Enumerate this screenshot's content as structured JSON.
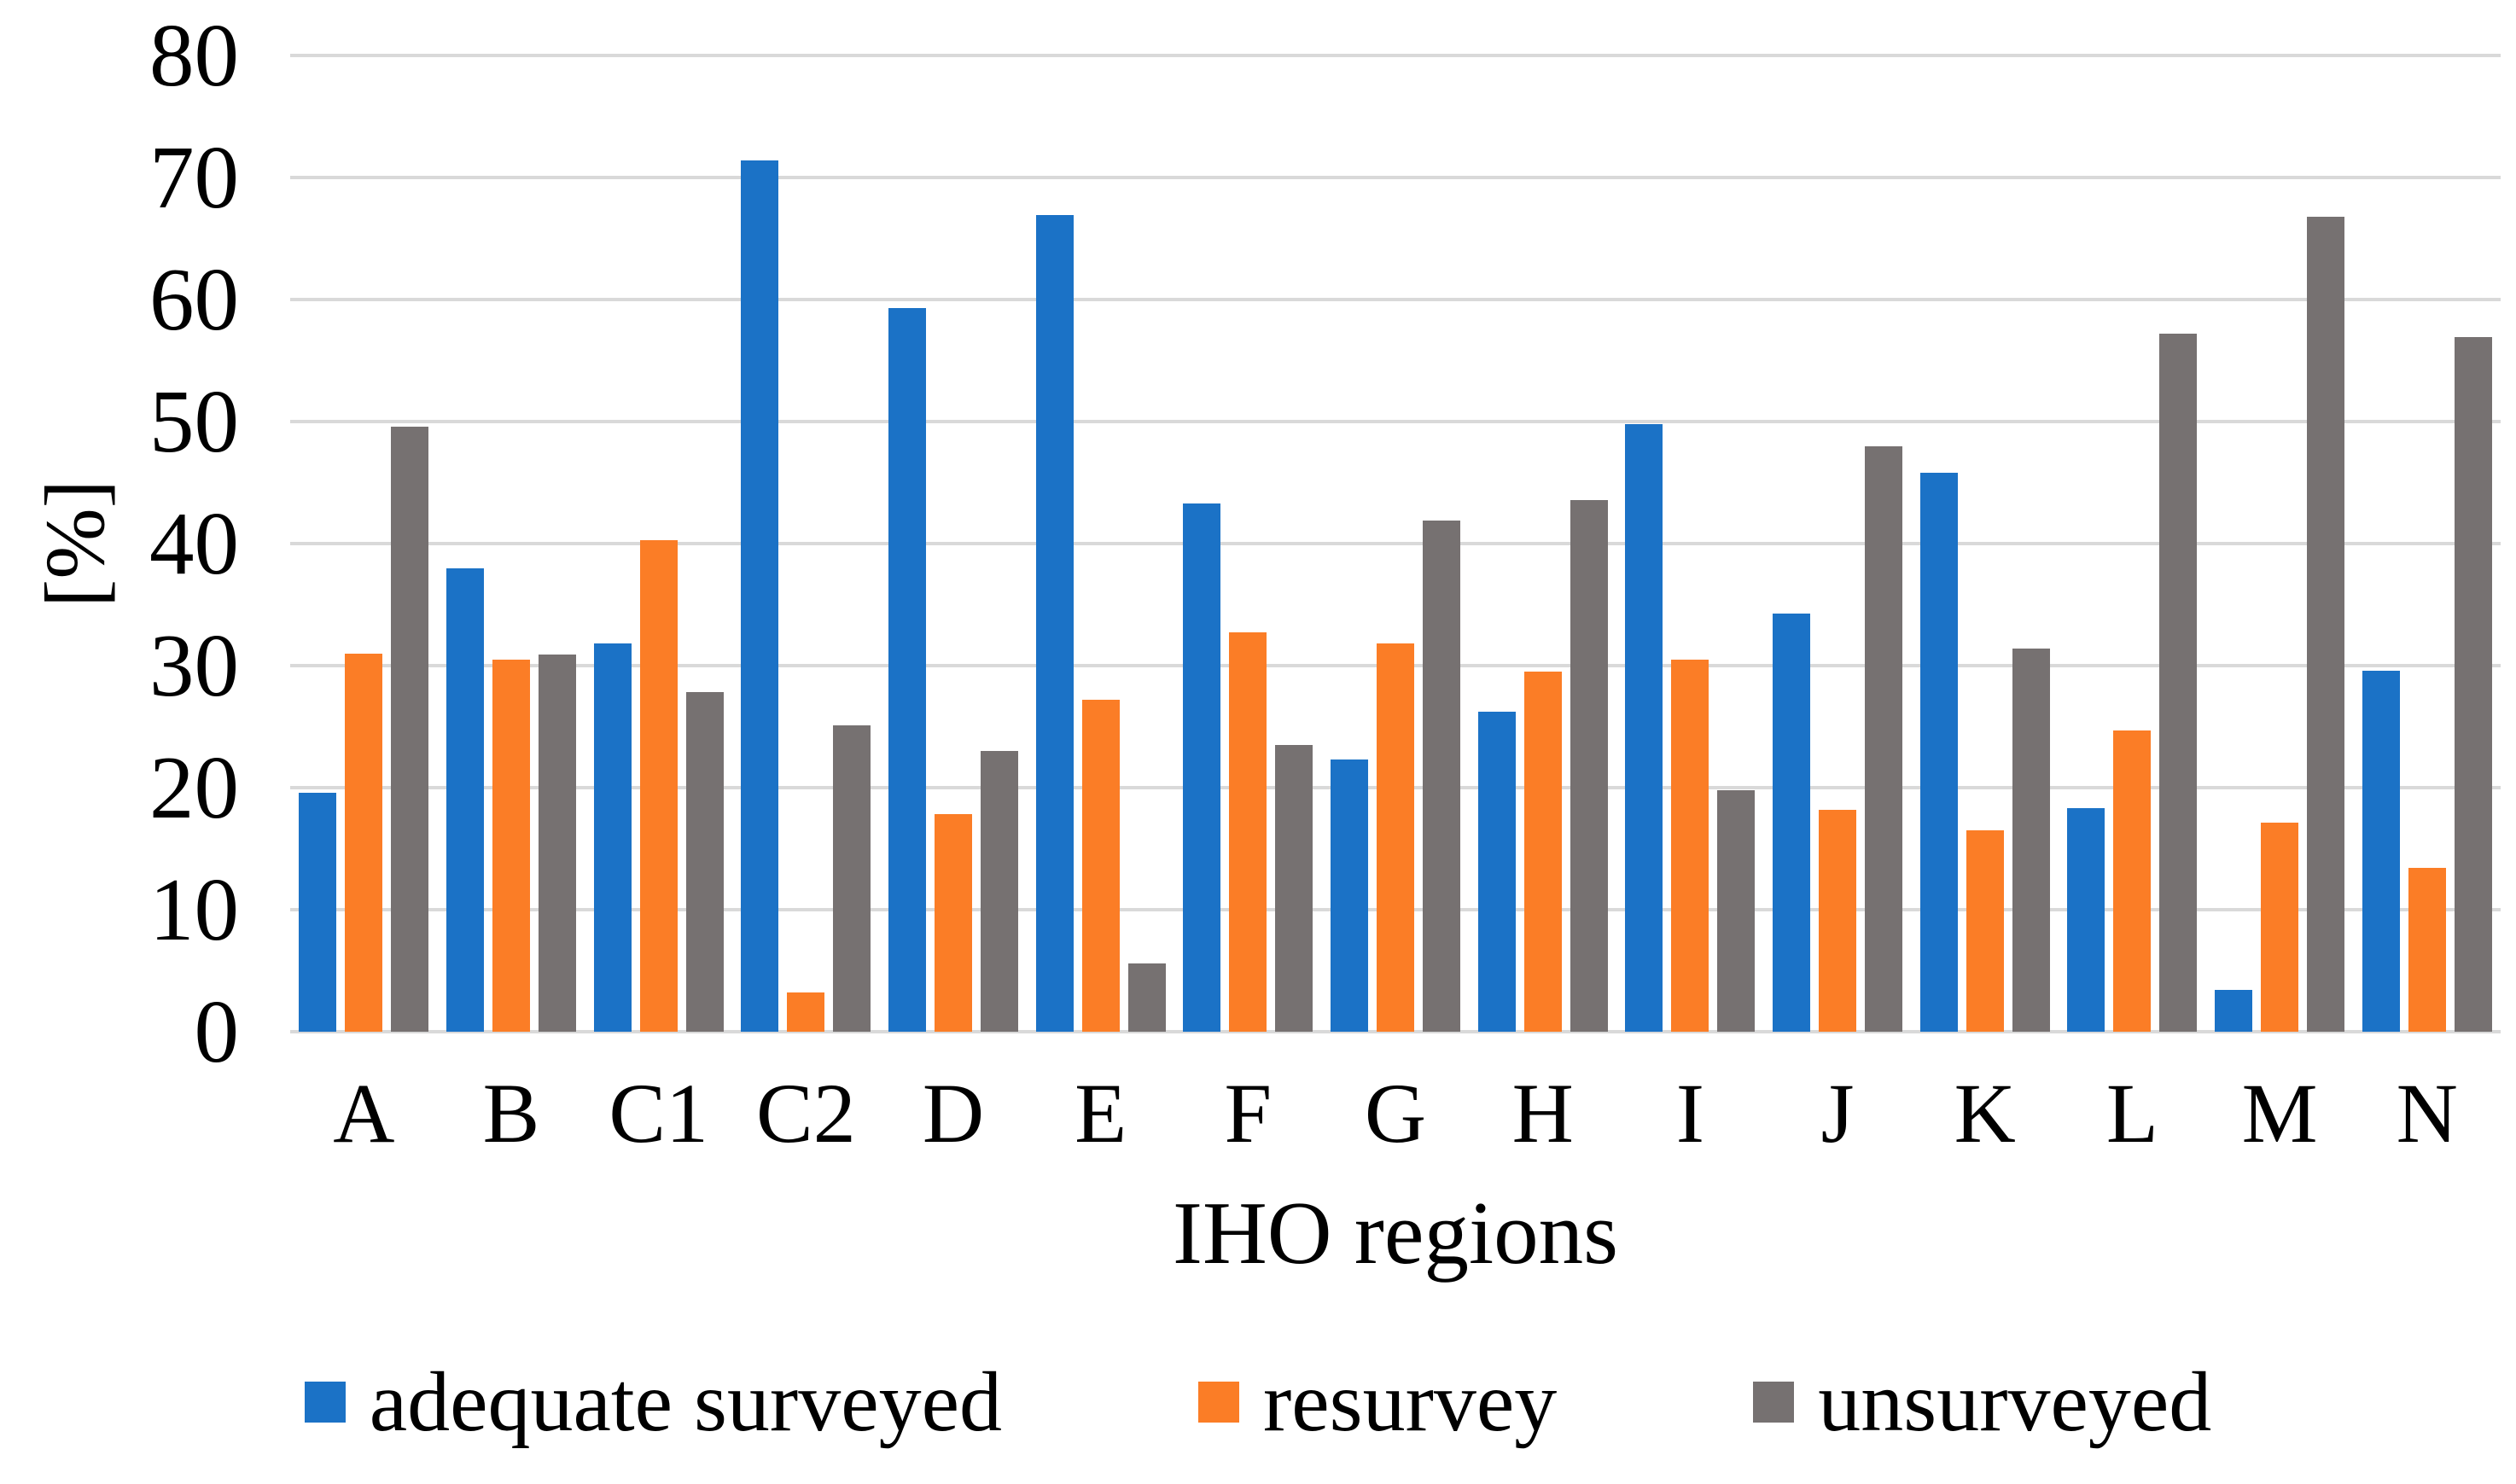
{
  "chart_data": {
    "type": "bar",
    "title": "",
    "xlabel": "IHO regions",
    "ylabel": "[%]",
    "ylim": [
      0,
      80
    ],
    "yticks": [
      0,
      10,
      20,
      30,
      40,
      50,
      60,
      70,
      80
    ],
    "grid": true,
    "legend_position": "bottom",
    "categories": [
      "A",
      "B",
      "C1",
      "C2",
      "D",
      "E",
      "F",
      "G",
      "H",
      "I",
      "J",
      "K",
      "L",
      "M",
      "N"
    ],
    "series": [
      {
        "name": "adequate surveyed",
        "color": "#1b72c6",
        "values": [
          19.6,
          38.0,
          31.8,
          71.4,
          59.3,
          66.9,
          43.3,
          22.3,
          26.2,
          49.8,
          34.3,
          45.8,
          18.3,
          3.4,
          29.6
        ]
      },
      {
        "name": "resurvey",
        "color": "#fb7d26",
        "values": [
          31.0,
          30.5,
          40.3,
          3.2,
          17.8,
          27.2,
          32.7,
          31.8,
          29.5,
          30.5,
          18.2,
          16.5,
          24.7,
          17.1,
          13.4
        ]
      },
      {
        "name": "unsurveyed",
        "color": "#767171",
        "values": [
          49.6,
          30.9,
          27.8,
          25.1,
          23.0,
          5.6,
          23.5,
          41.9,
          43.6,
          19.8,
          48.0,
          31.4,
          57.2,
          66.8,
          56.9
        ]
      }
    ]
  },
  "colors": {
    "gridline": "#d9d9d9",
    "background": "#ffffff",
    "text": "#000000"
  }
}
